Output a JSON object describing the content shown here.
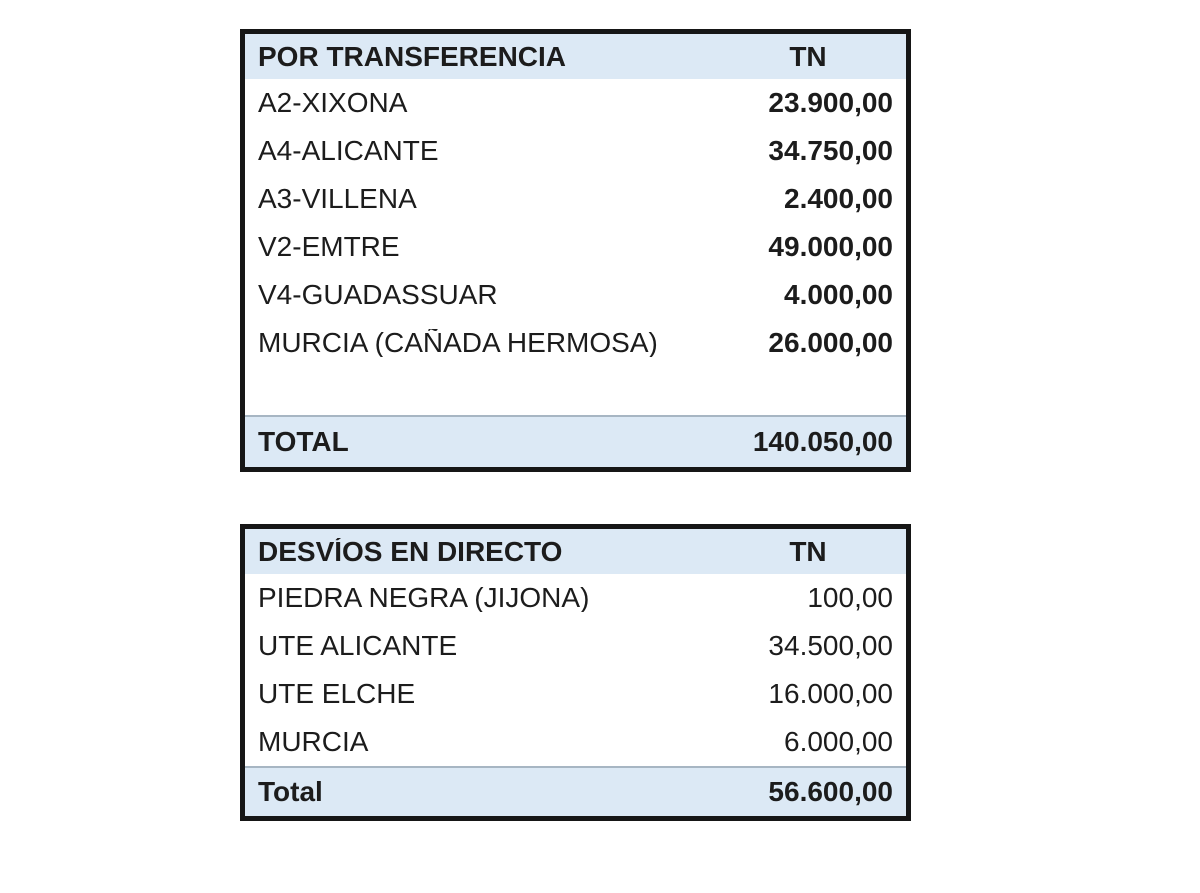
{
  "colors": {
    "header_bg": "#dce9f5",
    "total_bg": "#dce9f5",
    "outer_border": "#161616",
    "total_divider": "#a7b6c3",
    "text": "#1c1c1c",
    "page_bg": "#ffffff"
  },
  "tables": [
    {
      "header": {
        "label": "POR TRANSFERENCIA",
        "value": "TN"
      },
      "rows": [
        {
          "label": "A2-XIXONA",
          "value": "23.900,00"
        },
        {
          "label": "A4-ALICANTE",
          "value": "34.750,00"
        },
        {
          "label": "A3-VILLENA",
          "value": "2.400,00"
        },
        {
          "label": "V2-EMTRE",
          "value": "49.000,00"
        },
        {
          "label": "V4-GUADASSUAR",
          "value": "4.000,00"
        },
        {
          "label": "MURCIA (CAÑADA HERMOSA)",
          "value": "26.000,00"
        },
        {
          "label": "",
          "value": ""
        }
      ],
      "total": {
        "label": "TOTAL",
        "value": "140.050,00"
      }
    },
    {
      "header": {
        "label": "DESVÍOS EN DIRECTO",
        "value": "TN"
      },
      "rows": [
        {
          "label": "PIEDRA NEGRA (JIJONA)",
          "value": "100,00"
        },
        {
          "label": "UTE ALICANTE",
          "value": "34.500,00"
        },
        {
          "label": "UTE ELCHE",
          "value": "16.000,00"
        },
        {
          "label": "MURCIA",
          "value": "6.000,00"
        }
      ],
      "total": {
        "label": "Total",
        "value": "56.600,00"
      }
    }
  ]
}
